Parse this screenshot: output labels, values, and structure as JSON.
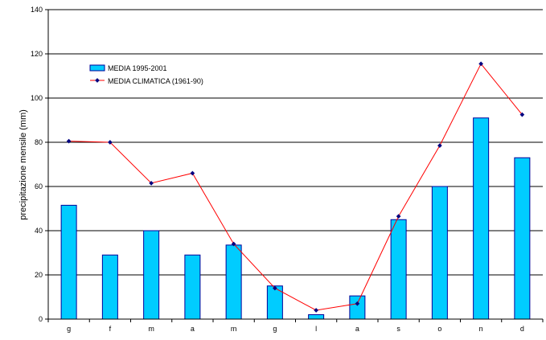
{
  "chart_data": {
    "type": "bar",
    "categories": [
      "g",
      "f",
      "m",
      "a",
      "m",
      "g",
      "l",
      "a",
      "s",
      "o",
      "n",
      "d"
    ],
    "ylabel": "precipitazione mensile (mm)",
    "ylim": [
      0,
      140
    ],
    "yticks": [
      0,
      20,
      40,
      60,
      80,
      100,
      120,
      140
    ],
    "grid": true,
    "legend_position": "top-left",
    "series": [
      {
        "name": "MEDIA 1995-2001",
        "type": "bar",
        "color": "#00ccff",
        "stroke": "#000099",
        "values": [
          51.5,
          29,
          40,
          29,
          33.5,
          15,
          2,
          10.5,
          45,
          60,
          91,
          73
        ]
      },
      {
        "name": "MEDIA CLIMATICA (1961-90)",
        "type": "line",
        "color": "#ff0000",
        "marker_color": "#000080",
        "values": [
          80.5,
          80,
          61.5,
          66,
          34,
          14,
          4,
          7,
          46.5,
          78.5,
          115.5,
          92.5
        ]
      }
    ]
  }
}
